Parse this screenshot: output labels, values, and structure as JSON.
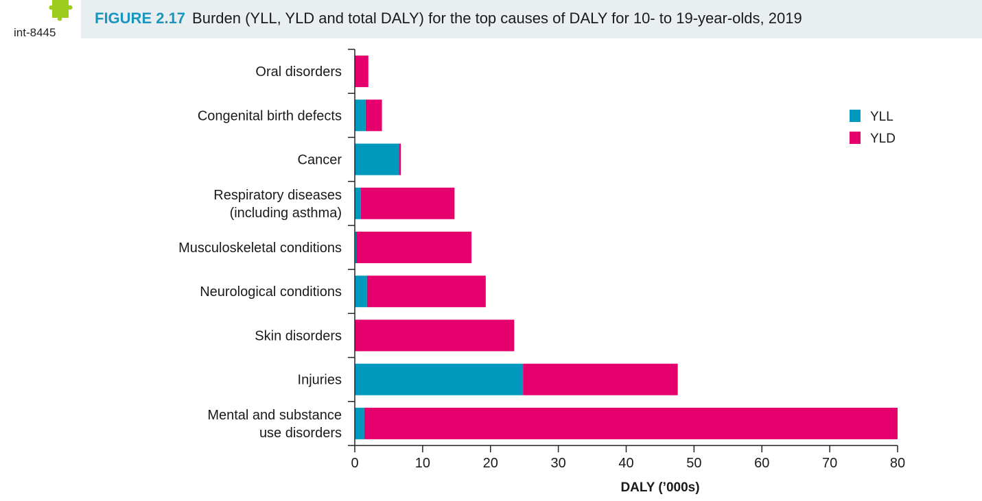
{
  "header": {
    "code": "int-8445",
    "figure_number": "FIGURE 2.17",
    "figure_title": "Burden (YLL, YLD and total DALY) for the top causes of DALY for 10- to 19-year-olds, 2019"
  },
  "colors": {
    "yll": "#0099bd",
    "yld": "#e5006d",
    "accent": "#1a95bd",
    "puzzle": "#9ccc1e"
  },
  "chart_data": {
    "type": "bar",
    "orientation": "horizontal",
    "stacked": true,
    "categories": [
      "Oral disorders",
      "Congenital birth defects",
      "Cancer",
      "Respiratory diseases (including asthma)",
      "Musculoskeletal conditions",
      "Neurological conditions",
      "Skin disorders",
      "Injuries",
      "Mental and substance use disorders"
    ],
    "category_lines": [
      [
        "Oral disorders"
      ],
      [
        "Congenital birth defects"
      ],
      [
        "Cancer"
      ],
      [
        "Respiratory diseases",
        "(including asthma)"
      ],
      [
        "Musculoskeletal conditions"
      ],
      [
        "Neurological conditions"
      ],
      [
        "Skin disorders"
      ],
      [
        "Injuries"
      ],
      [
        "Mental and substance",
        "use disorders"
      ]
    ],
    "series": [
      {
        "name": "YLL",
        "values": [
          0,
          1.6,
          6.5,
          0.9,
          0.2,
          1.8,
          0,
          24.8,
          1.4
        ]
      },
      {
        "name": "YLD",
        "values": [
          2.0,
          2.4,
          0.3,
          13.8,
          17.0,
          17.5,
          23.5,
          22.8,
          78.6
        ]
      }
    ],
    "xlabel": "DALY (’000s)",
    "ylabel": "",
    "xlim": [
      0,
      80
    ],
    "xticks": [
      "0",
      "10",
      "20",
      "30",
      "40",
      "50",
      "60",
      "70",
      "80"
    ],
    "grid": false,
    "legend_position": "top-right"
  }
}
